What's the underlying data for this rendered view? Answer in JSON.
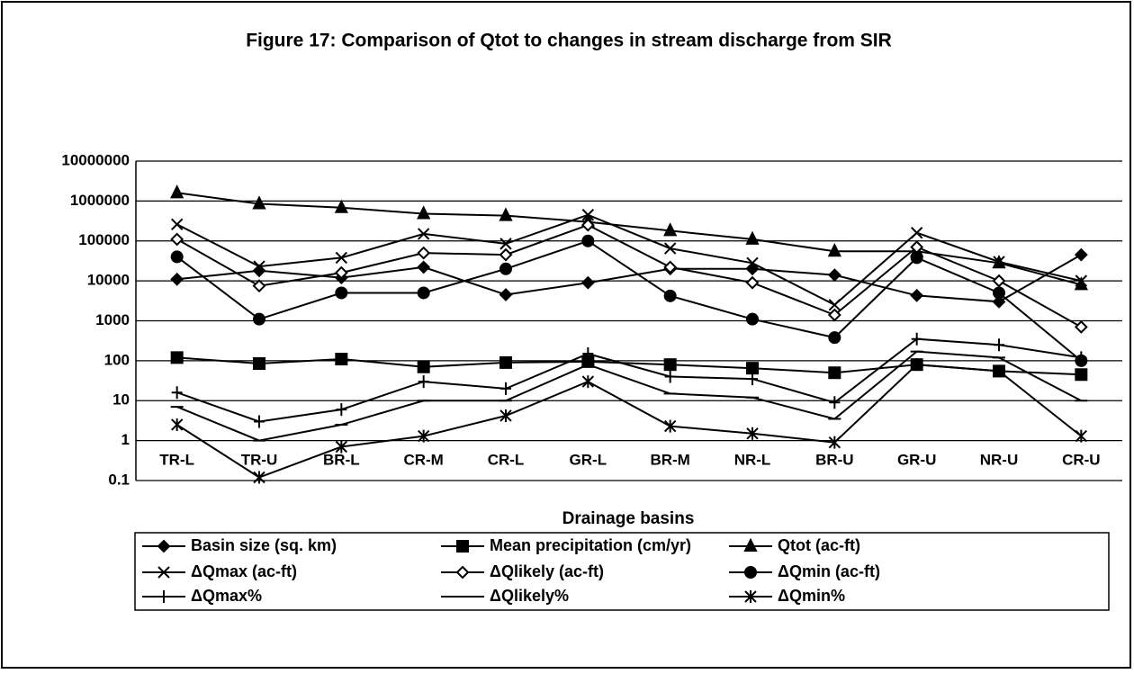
{
  "chart_data": {
    "type": "line",
    "title": "Figure 17: Comparison of Qtot to changes in stream discharge from SIR",
    "x_label": "Drainage basins",
    "categories": [
      "TR-L",
      "TR-U",
      "BR-L",
      "CR-M",
      "CR-L",
      "GR-L",
      "BR-M",
      "NR-L",
      "BR-U",
      "GR-U",
      "NR-U",
      "CR-U"
    ],
    "log_scale": true,
    "grid": true,
    "ylim": [
      0.1,
      10000000
    ],
    "yticks": [
      0.1,
      1,
      10,
      100,
      1000,
      10000,
      100000,
      1000000,
      10000000
    ],
    "series": [
      {
        "name": "Basin size (sq. km)",
        "color": "#000",
        "marker": "diamond",
        "values": [
          11000,
          18000,
          12000,
          22000,
          4500,
          9000,
          20000,
          20000,
          14000,
          4300,
          3000,
          45000
        ]
      },
      {
        "name": "Mean precipitation (cm/yr)",
        "color": "#000",
        "marker": "square",
        "values": [
          120,
          85,
          110,
          70,
          90,
          95,
          80,
          65,
          50,
          80,
          55,
          45
        ]
      },
      {
        "name": "Qtot (ac-ft)",
        "color": "#000",
        "marker": "triangle",
        "values": [
          1600000,
          850000,
          680000,
          480000,
          430000,
          300000,
          180000,
          110000,
          55000,
          55000,
          28000,
          8000
        ]
      },
      {
        "name": "ΔQmax (ac-ft)",
        "color": "#000",
        "marker": "x",
        "values": [
          260000,
          23000,
          38000,
          150000,
          85000,
          450000,
          65000,
          28000,
          2500,
          160000,
          30000,
          10000
        ]
      },
      {
        "name": "ΔQlikely (ac-ft)",
        "color": "#000",
        "marker": "open-diamond",
        "values": [
          110000,
          7500,
          16000,
          50000,
          45000,
          250000,
          22000,
          9000,
          1400,
          70000,
          10000,
          700
        ]
      },
      {
        "name": "ΔQmin (ac-ft)",
        "color": "#000",
        "marker": "circle",
        "values": [
          40000,
          1100,
          5000,
          5000,
          20000,
          100000,
          4200,
          1100,
          380,
          38000,
          5000,
          100
        ]
      },
      {
        "name": "ΔQmax%",
        "color": "#000",
        "marker": "plus",
        "values": [
          16,
          3,
          6,
          30,
          20,
          150,
          40,
          35,
          9,
          350,
          250,
          120
        ]
      },
      {
        "name": "ΔQlikely%",
        "color": "#000",
        "marker": "dash",
        "values": [
          7,
          1,
          2.5,
          10,
          10,
          80,
          15,
          12,
          3.5,
          170,
          120,
          10
        ]
      },
      {
        "name": "ΔQmin%",
        "color": "#000",
        "marker": "star",
        "values": [
          2.5,
          0.12,
          0.7,
          1.3,
          4.2,
          30,
          2.3,
          1.5,
          0.9,
          80,
          55,
          1.3
        ]
      }
    ]
  }
}
